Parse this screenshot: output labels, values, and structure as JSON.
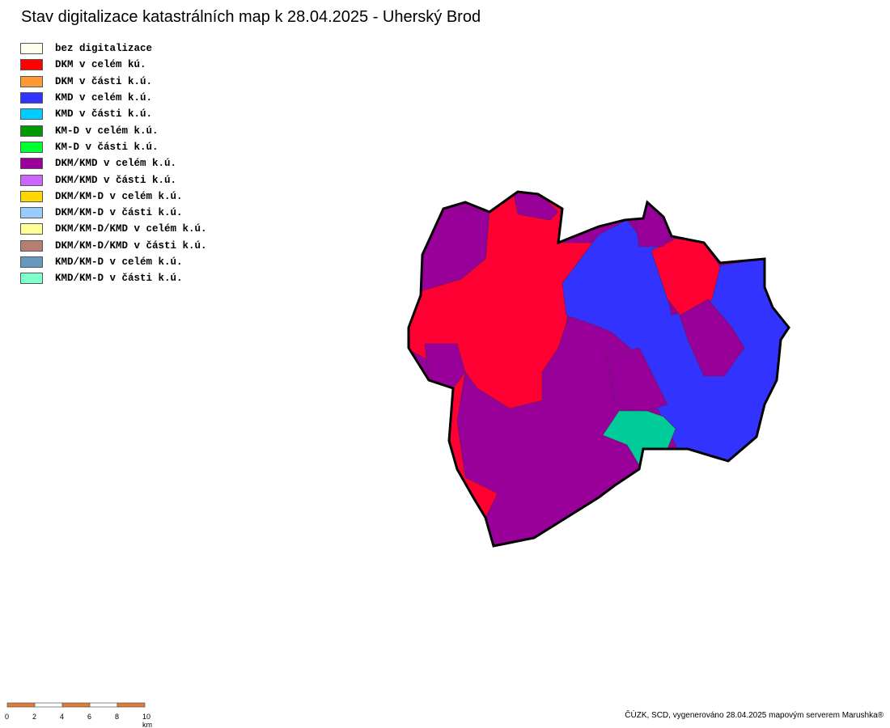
{
  "title": "Stav digitalizace katastrálních map k 28.04.2025 - Uherský Brod",
  "legend": [
    {
      "label": "bez digitalizace",
      "color": "#ffffee"
    },
    {
      "label": "DKM v celém kú.",
      "color": "#ff0000"
    },
    {
      "label": "DKM v části k.ú.",
      "color": "#ff9933"
    },
    {
      "label": "KMD v celém k.ú.",
      "color": "#3333ff"
    },
    {
      "label": "KMD v části k.ú.",
      "color": "#00ccff"
    },
    {
      "label": "KM-D v celém k.ú.",
      "color": "#009900"
    },
    {
      "label": "KM-D v části k.ú.",
      "color": "#00ff33"
    },
    {
      "label": "DKM/KMD v celém k.ú.",
      "color": "#990099"
    },
    {
      "label": "DKM/KMD v části k.ú.",
      "color": "#cc66ff"
    },
    {
      "label": "DKM/KM-D v celém k.ú.",
      "color": "#ffd700"
    },
    {
      "label": "DKM/KM-D v části k.ú.",
      "color": "#99ccff"
    },
    {
      "label": "DKM/KM-D/KMD v celém k.ú.",
      "color": "#ffff99"
    },
    {
      "label": "DKM/KM-D/KMD v části k.ú.",
      "color": "#b37f73"
    },
    {
      "label": "KMD/KM-D v celém k.ú.",
      "color": "#6699bb"
    },
    {
      "label": "KMD/KM-D v části k.ú.",
      "color": "#80ffcc"
    }
  ],
  "scale_labels": [
    "0",
    "2",
    "4",
    "6",
    "8",
    "10 km"
  ],
  "credit": "ČÚZK, SCD, vygenerováno 28.04.2025 mapovým serverem Marushka®"
}
